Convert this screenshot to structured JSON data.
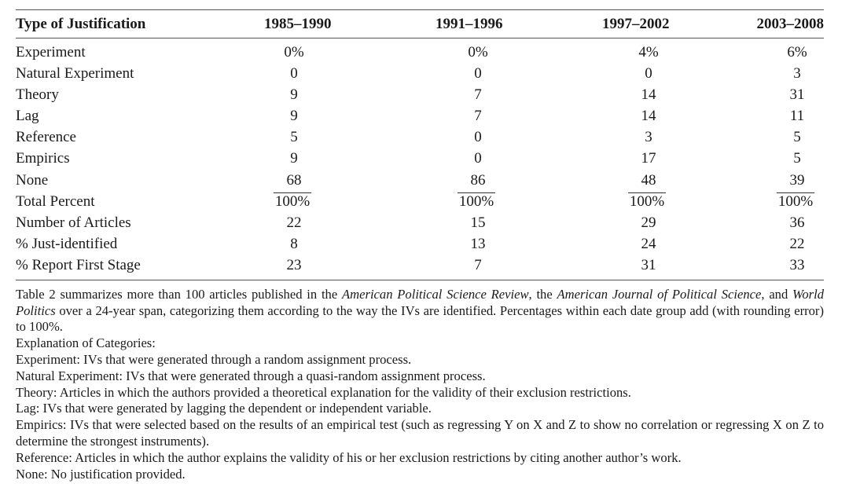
{
  "table": {
    "headers": [
      "Type of Justification",
      "1985–1990",
      "1991–1996",
      "1997–2002",
      "2003–2008"
    ],
    "rows": [
      {
        "label": "Experiment",
        "values": [
          "0%",
          "0%",
          "4%",
          "6%"
        ]
      },
      {
        "label": "Natural Experiment",
        "values": [
          "0",
          "0",
          "0",
          "3"
        ]
      },
      {
        "label": "Theory",
        "values": [
          "9",
          "7",
          "14",
          "31"
        ]
      },
      {
        "label": "Lag",
        "values": [
          "9",
          "7",
          "14",
          "11"
        ]
      },
      {
        "label": "Reference",
        "values": [
          "5",
          "0",
          "3",
          "5"
        ]
      },
      {
        "label": "Empirics",
        "values": [
          "9",
          "0",
          "17",
          "5"
        ]
      },
      {
        "label": "None",
        "values": [
          "68",
          "86",
          "48",
          "39"
        ]
      },
      {
        "label": "Total Percent",
        "values": [
          "100%",
          "100%",
          "100%",
          "100%"
        ],
        "overline": true
      },
      {
        "label": "Number of Articles",
        "values": [
          "22",
          "15",
          "29",
          "36"
        ]
      },
      {
        "label": "% Just-identified",
        "values": [
          "8",
          "13",
          "24",
          "22"
        ]
      },
      {
        "label": "% Report First Stage",
        "values": [
          "23",
          "7",
          "31",
          "33"
        ]
      }
    ]
  },
  "notes": {
    "summary_1": "Table 2 summarizes more than 100 articles published in the ",
    "journal_1": "American Political Science Review",
    "summary_2": ", the ",
    "journal_2": "American Journal of Political Science",
    "summary_3": ", and ",
    "journal_3": "World Politics",
    "summary_4": " over a 24-year span, categorizing them according to the way the IVs are identified. Percentages within each date group add (with rounding error) to 100%.",
    "lines": [
      "Explanation of Categories:",
      "Experiment: IVs that were generated through a random assignment process.",
      "Natural Experiment: IVs that were generated through a quasi-random assignment process.",
      "Theory: Articles in which the authors provided a theoretical explanation for the validity of their exclusion restrictions.",
      "Lag: IVs that were generated by lagging the dependent or independent variable.",
      "Empirics: IVs that were selected based on the results of an empirical test (such as regressing Y on X and Z to show no correlation or regressing X on Z to determine the strongest instruments).",
      "Reference: Articles in which the author explains the validity of his or her exclusion restrictions by citing another author’s work.",
      "None: No justification provided."
    ]
  }
}
